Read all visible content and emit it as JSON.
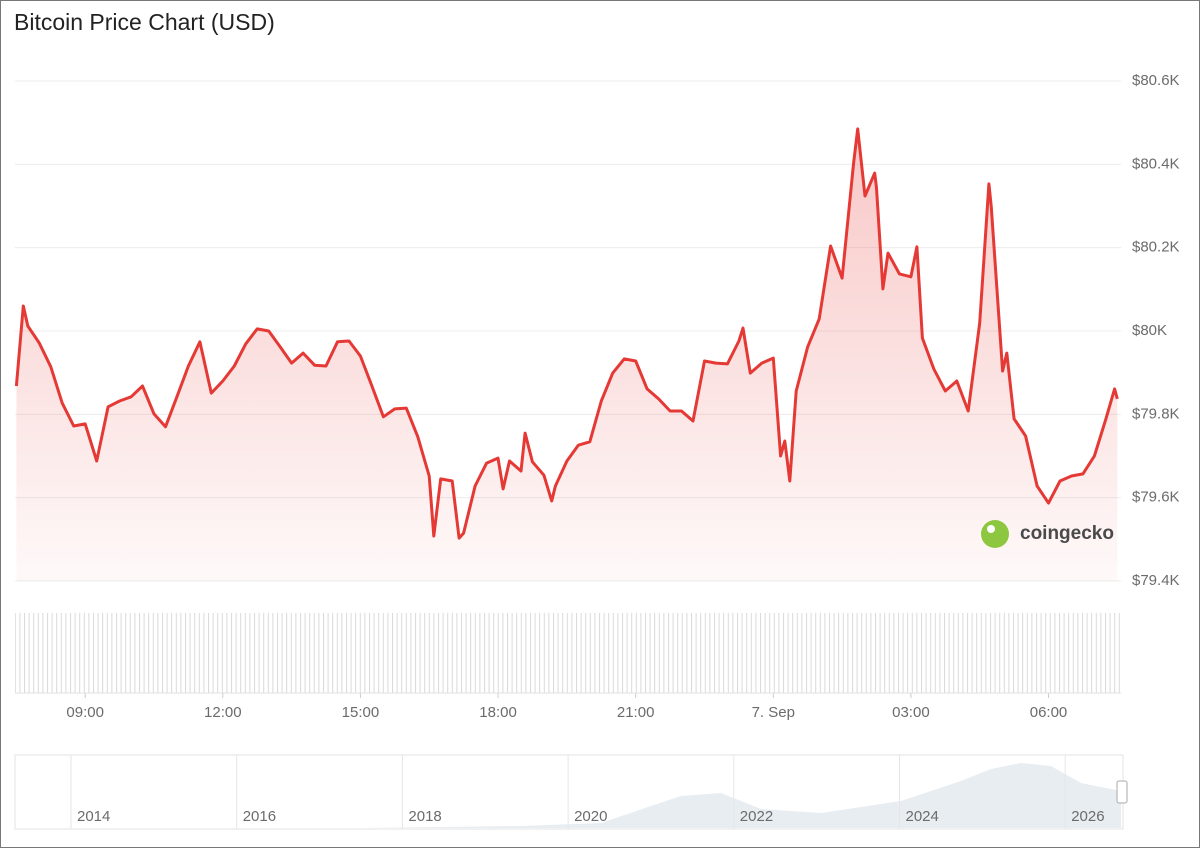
{
  "chart_data": {
    "type": "line",
    "title": "Bitcoin Price Chart (USD)",
    "color": "#e53935",
    "x": [
      7.5,
      7.65,
      7.75,
      8.0,
      8.25,
      8.5,
      8.75,
      9.0,
      9.25,
      9.5,
      9.75,
      10.0,
      10.25,
      10.5,
      10.75,
      11.0,
      11.25,
      11.5,
      11.75,
      12.0,
      12.25,
      12.5,
      12.75,
      13.0,
      13.25,
      13.5,
      13.75,
      14.0,
      14.25,
      14.5,
      14.75,
      15.0,
      15.25,
      15.5,
      15.75,
      16.0,
      16.25,
      16.5,
      16.6,
      16.75,
      17.0,
      17.15,
      17.25,
      17.5,
      17.75,
      18.0,
      18.11,
      18.25,
      18.5,
      18.59,
      18.75,
      19.0,
      19.17,
      19.25,
      19.5,
      19.75,
      20.0,
      20.25,
      20.5,
      20.75,
      21.0,
      21.25,
      21.5,
      21.75,
      22.0,
      22.25,
      22.5,
      22.75,
      23.0,
      23.25,
      23.34,
      23.5,
      23.75,
      24.0,
      24.16,
      24.25,
      24.36,
      24.5,
      24.75,
      25.0,
      25.25,
      25.5,
      25.75,
      25.84,
      26.0,
      26.21,
      26.25,
      26.39,
      26.5,
      26.75,
      27.0,
      27.13,
      27.25,
      27.5,
      27.75,
      28.0,
      28.25,
      28.5,
      28.7,
      28.75,
      29.0,
      29.09,
      29.25,
      29.5,
      29.75,
      30.0,
      30.25,
      30.5,
      30.75,
      31.0,
      31.25,
      31.44,
      31.5
    ],
    "values": [
      79868,
      80060,
      80012,
      79971,
      79914,
      79827,
      79772,
      79777,
      79688,
      79818,
      79832,
      79842,
      79868,
      79801,
      79770,
      79842,
      79916,
      79974,
      79851,
      79880,
      79916,
      79969,
      80005,
      80000,
      79962,
      79923,
      79947,
      79918,
      79916,
      79974,
      79976,
      79940,
      79868,
      79794,
      79813,
      79815,
      79746,
      79652,
      79508,
      79645,
      79640,
      79503,
      79515,
      79628,
      79683,
      79695,
      79621,
      79688,
      79664,
      79755,
      79686,
      79654,
      79592,
      79628,
      79688,
      79726,
      79734,
      79832,
      79899,
      79933,
      79928,
      79861,
      79837,
      79808,
      79808,
      79784,
      79928,
      79923,
      79921,
      79976,
      80007,
      79899,
      79923,
      79935,
      79700,
      79736,
      79640,
      79856,
      79962,
      80029,
      80204,
      80127,
      80403,
      80485,
      80324,
      80379,
      80343,
      80101,
      80187,
      80137,
      80130,
      80202,
      79983,
      79909,
      79856,
      79880,
      79808,
      80019,
      80353,
      80300,
      79904,
      79947,
      79789,
      79748,
      79628,
      79587,
      79640,
      79652,
      79657,
      79700,
      79789,
      79861,
      79837
    ],
    "xlim": [
      7.47,
      31.58
    ],
    "xticks": [
      {
        "value": 9,
        "label": "09:00"
      },
      {
        "value": 12,
        "label": "12:00"
      },
      {
        "value": 15,
        "label": "15:00"
      },
      {
        "value": 18,
        "label": "18:00"
      },
      {
        "value": 21,
        "label": "21:00"
      },
      {
        "value": 24,
        "label": "7. Sep"
      },
      {
        "value": 27,
        "label": "03:00"
      },
      {
        "value": 30,
        "label": "06:00"
      }
    ],
    "ylim": [
      79400,
      80600
    ],
    "yticks": [
      {
        "value": 79400,
        "label": "$79.4K"
      },
      {
        "value": 79600,
        "label": "$79.6K"
      },
      {
        "value": 79800,
        "label": "$79.8K"
      },
      {
        "value": 80000,
        "label": "$80K"
      },
      {
        "value": 80200,
        "label": "$80.2K"
      },
      {
        "value": 80400,
        "label": "$80.4K"
      },
      {
        "value": 80600,
        "label": "$80.6K"
      }
    ],
    "grid": true,
    "watermark": "coingecko",
    "navigator_labels": [
      "2014",
      "2016",
      "2018",
      "2020",
      "2022",
      "2024",
      "2026"
    ]
  }
}
